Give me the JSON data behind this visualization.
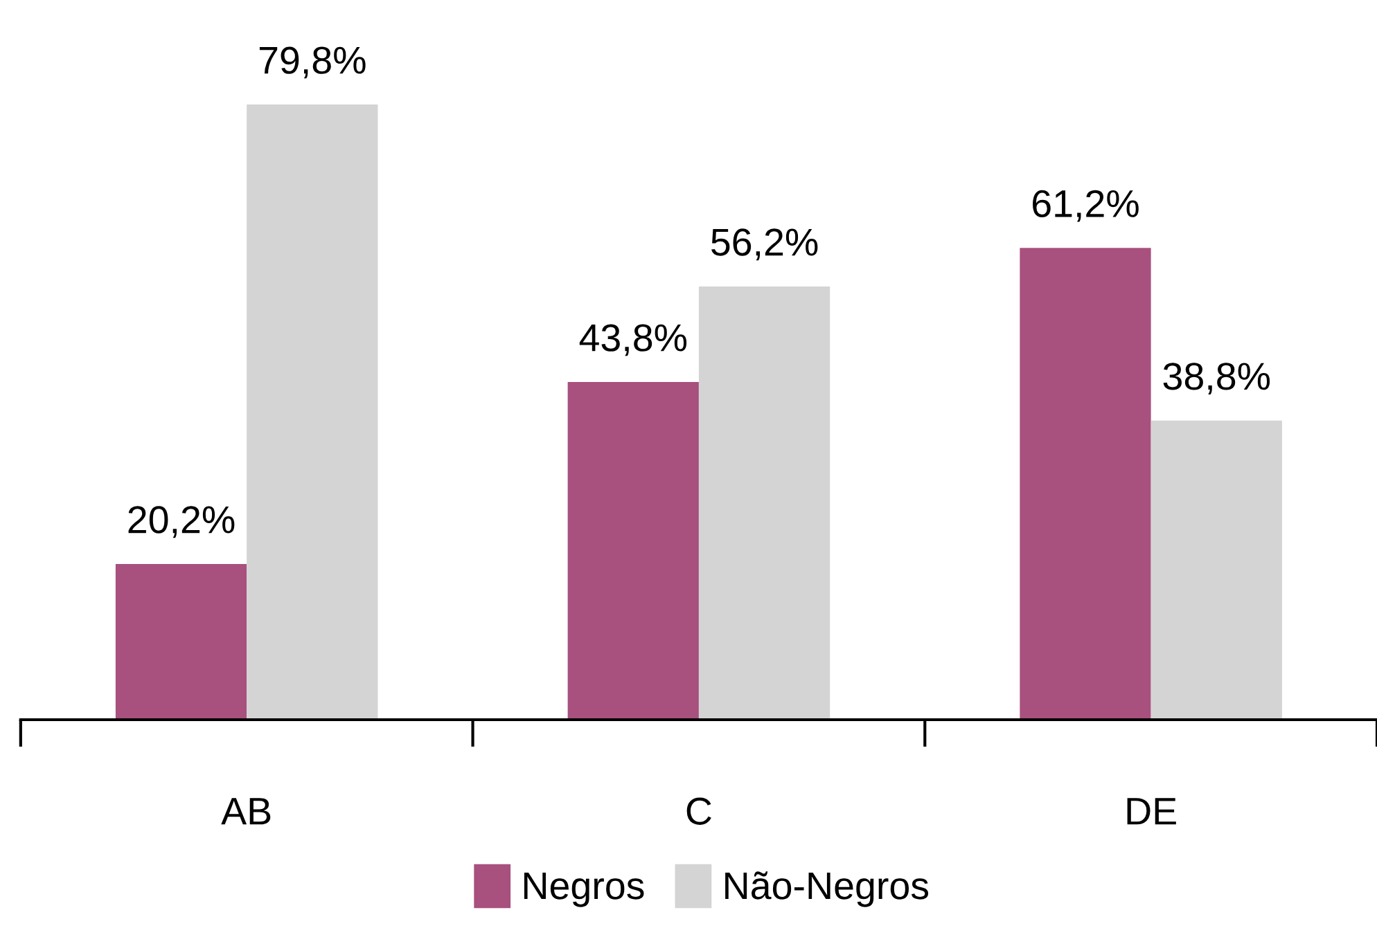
{
  "chart_data": {
    "type": "bar",
    "categories": [
      "AB",
      "C",
      "DE"
    ],
    "series": [
      {
        "name": "Negros",
        "color": "#a8507e",
        "values": [
          20.2,
          43.8,
          61.2
        ],
        "value_labels": [
          "20,2%",
          "43,8%",
          "61,2%"
        ]
      },
      {
        "name": "Não-Negros",
        "color": "#d4d4d4",
        "values": [
          79.8,
          56.2,
          38.8
        ],
        "value_labels": [
          "79,8%",
          "56,2%",
          "38,8%"
        ]
      }
    ],
    "legend": "bottom",
    "grid": false
  }
}
